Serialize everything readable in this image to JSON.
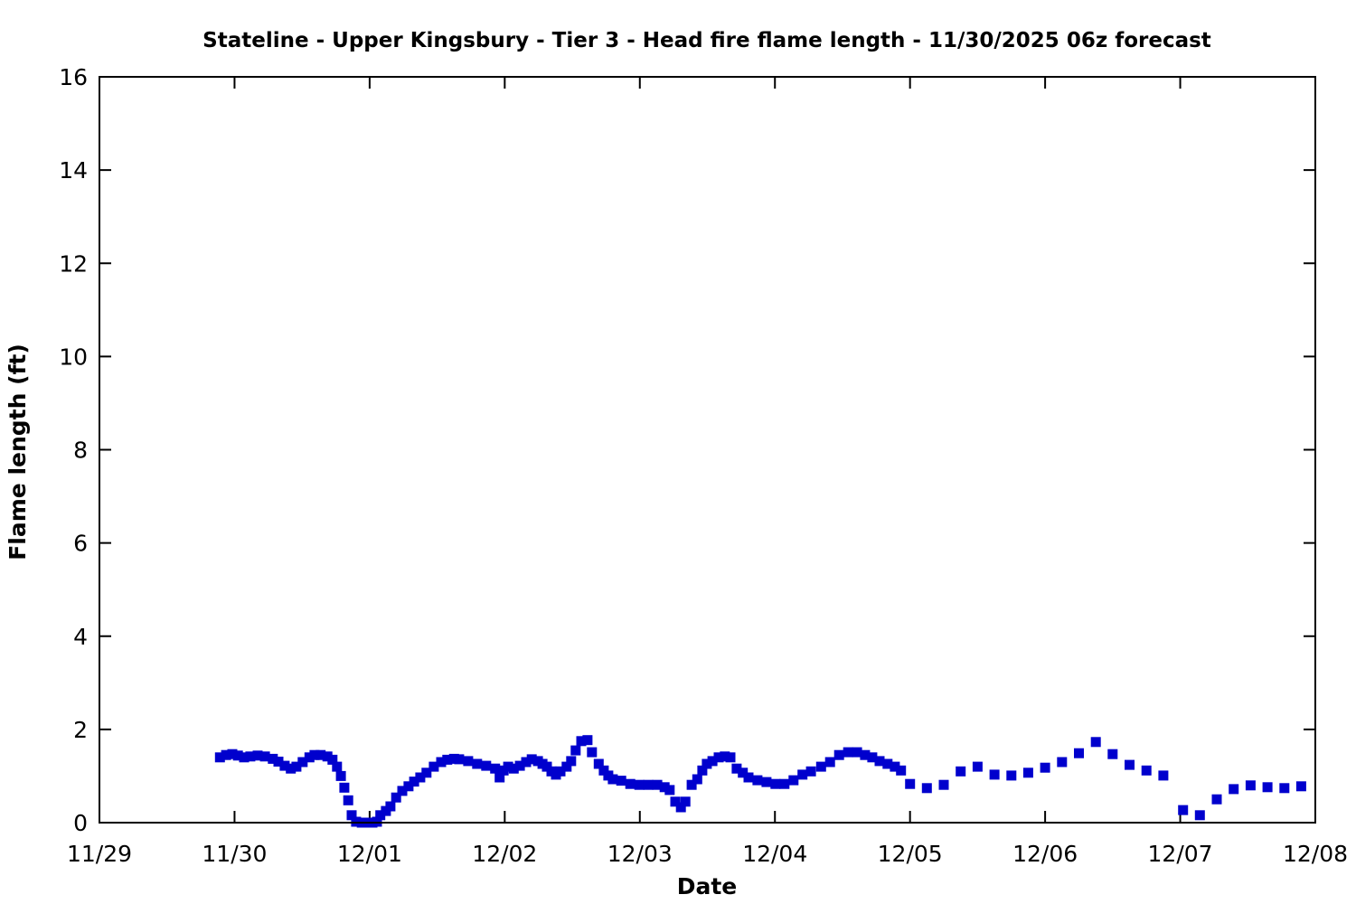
{
  "chart_data": {
    "type": "scatter",
    "title": "Stateline - Upper Kingsbury - Tier 3 - Head fire flame length - 11/30/2025 06z forecast",
    "xlabel": "Date",
    "ylabel": "Flame length (ft)",
    "x_tick_labels": [
      "11/29",
      "11/30",
      "12/01",
      "12/02",
      "12/03",
      "12/04",
      "12/05",
      "12/06",
      "12/07",
      "12/08"
    ],
    "y_ticks": [
      0,
      2,
      4,
      6,
      8,
      10,
      12,
      14,
      16
    ],
    "ylim": [
      0,
      16
    ],
    "xlim_hours_since_11_29": [
      0,
      216
    ],
    "grid": false,
    "legend": "none",
    "marker": "filled-square",
    "marker_color": "#0000cd",
    "frame_color": "#000000",
    "background_color": "#ffffff",
    "series": [
      {
        "name": "Head fire flame length (ft)",
        "x_unit": "hours since 11/29 00:00",
        "points": [
          [
            21.4,
            1.4
          ],
          [
            22.5,
            1.45
          ],
          [
            23.6,
            1.47
          ],
          [
            24.6,
            1.44
          ],
          [
            25.7,
            1.4
          ],
          [
            26.8,
            1.42
          ],
          [
            28.1,
            1.44
          ],
          [
            29.4,
            1.42
          ],
          [
            30.8,
            1.37
          ],
          [
            31.8,
            1.31
          ],
          [
            32.9,
            1.22
          ],
          [
            34.0,
            1.16
          ],
          [
            35.0,
            1.2
          ],
          [
            36.1,
            1.3
          ],
          [
            37.3,
            1.4
          ],
          [
            38.2,
            1.45
          ],
          [
            39.3,
            1.45
          ],
          [
            40.5,
            1.42
          ],
          [
            41.4,
            1.35
          ],
          [
            42.2,
            1.2
          ],
          [
            42.9,
            1.0
          ],
          [
            43.5,
            0.75
          ],
          [
            44.2,
            0.48
          ],
          [
            44.8,
            0.16
          ],
          [
            45.6,
            0.02
          ],
          [
            46.6,
            0.0
          ],
          [
            47.5,
            0.0
          ],
          [
            48.5,
            0.0
          ],
          [
            49.3,
            0.02
          ],
          [
            49.9,
            0.16
          ],
          [
            50.9,
            0.25
          ],
          [
            51.7,
            0.35
          ],
          [
            52.7,
            0.54
          ],
          [
            53.8,
            0.68
          ],
          [
            54.9,
            0.78
          ],
          [
            55.9,
            0.88
          ],
          [
            57.0,
            0.97
          ],
          [
            58.1,
            1.07
          ],
          [
            59.4,
            1.2
          ],
          [
            60.7,
            1.3
          ],
          [
            61.8,
            1.35
          ],
          [
            63.0,
            1.37
          ],
          [
            63.9,
            1.36
          ],
          [
            65.5,
            1.32
          ],
          [
            67.1,
            1.26
          ],
          [
            68.7,
            1.22
          ],
          [
            70.3,
            1.16
          ],
          [
            71.1,
            0.97
          ],
          [
            71.8,
            1.12
          ],
          [
            72.6,
            1.2
          ],
          [
            73.6,
            1.16
          ],
          [
            74.7,
            1.22
          ],
          [
            75.8,
            1.3
          ],
          [
            76.8,
            1.36
          ],
          [
            77.9,
            1.32
          ],
          [
            78.7,
            1.26
          ],
          [
            79.5,
            1.2
          ],
          [
            80.3,
            1.1
          ],
          [
            81.1,
            1.03
          ],
          [
            81.9,
            1.1
          ],
          [
            83.0,
            1.2
          ],
          [
            83.8,
            1.32
          ],
          [
            84.6,
            1.55
          ],
          [
            85.6,
            1.75
          ],
          [
            86.7,
            1.77
          ],
          [
            87.5,
            1.51
          ],
          [
            88.7,
            1.26
          ],
          [
            89.6,
            1.12
          ],
          [
            90.4,
            1.01
          ],
          [
            91.2,
            0.93
          ],
          [
            92.7,
            0.9
          ],
          [
            94.3,
            0.83
          ],
          [
            95.9,
            0.81
          ],
          [
            97.5,
            0.81
          ],
          [
            99.1,
            0.81
          ],
          [
            100.4,
            0.76
          ],
          [
            101.3,
            0.7
          ],
          [
            102.3,
            0.45
          ],
          [
            103.3,
            0.33
          ],
          [
            104.1,
            0.45
          ],
          [
            105.2,
            0.81
          ],
          [
            106.2,
            0.93
          ],
          [
            107.1,
            1.12
          ],
          [
            107.9,
            1.26
          ],
          [
            108.9,
            1.32
          ],
          [
            110.0,
            1.4
          ],
          [
            111.1,
            1.42
          ],
          [
            112.1,
            1.4
          ],
          [
            113.2,
            1.16
          ],
          [
            114.3,
            1.07
          ],
          [
            115.3,
            0.97
          ],
          [
            116.9,
            0.91
          ],
          [
            118.5,
            0.87
          ],
          [
            120.1,
            0.83
          ],
          [
            121.7,
            0.83
          ],
          [
            123.3,
            0.91
          ],
          [
            124.9,
            1.03
          ],
          [
            126.4,
            1.1
          ],
          [
            128.2,
            1.2
          ],
          [
            129.8,
            1.3
          ],
          [
            131.4,
            1.45
          ],
          [
            133.0,
            1.51
          ],
          [
            134.6,
            1.51
          ],
          [
            136.0,
            1.45
          ],
          [
            137.3,
            1.4
          ],
          [
            138.6,
            1.32
          ],
          [
            140.0,
            1.26
          ],
          [
            141.3,
            1.2
          ],
          [
            142.4,
            1.12
          ],
          [
            144.0,
            0.83
          ],
          [
            147.0,
            0.74
          ],
          [
            150.0,
            0.81
          ],
          [
            153.0,
            1.1
          ],
          [
            156.0,
            1.2
          ],
          [
            159.0,
            1.03
          ],
          [
            162.0,
            1.01
          ],
          [
            165.0,
            1.07
          ],
          [
            168.0,
            1.18
          ],
          [
            171.0,
            1.3
          ],
          [
            174.0,
            1.49
          ],
          [
            177.0,
            1.73
          ],
          [
            180.0,
            1.47
          ],
          [
            183.0,
            1.24
          ],
          [
            186.0,
            1.12
          ],
          [
            189.0,
            1.01
          ],
          [
            192.5,
            0.27
          ],
          [
            195.5,
            0.16
          ],
          [
            198.5,
            0.5
          ],
          [
            201.5,
            0.72
          ],
          [
            204.5,
            0.8
          ],
          [
            207.5,
            0.76
          ],
          [
            210.5,
            0.74
          ],
          [
            213.5,
            0.78
          ]
        ]
      }
    ]
  }
}
